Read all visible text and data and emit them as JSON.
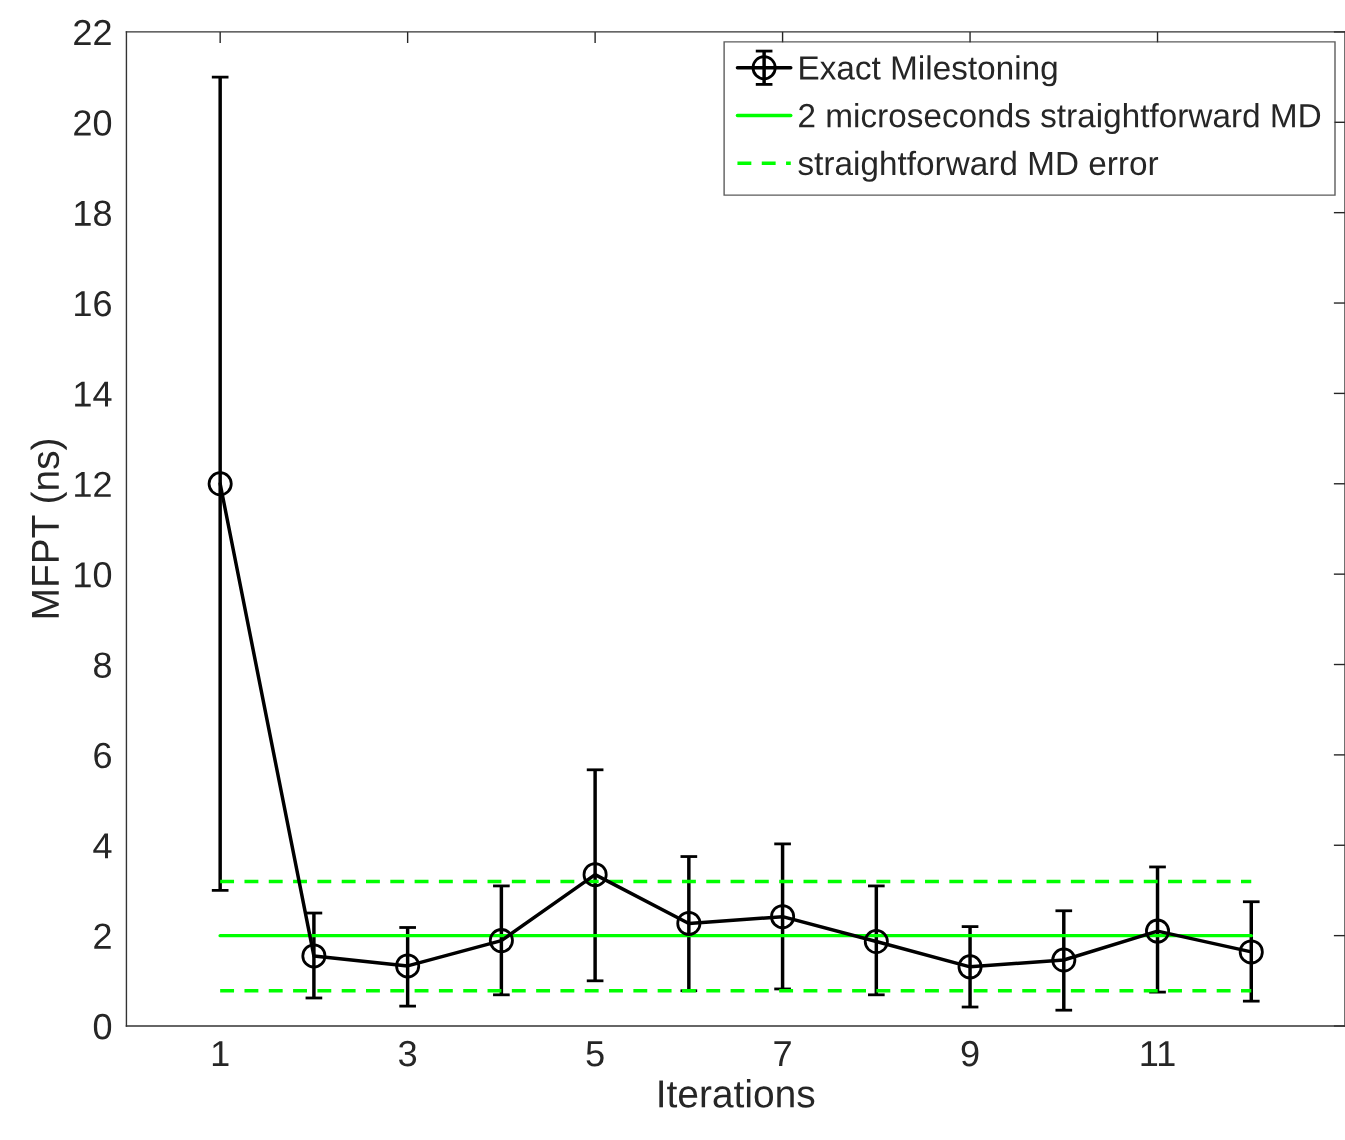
{
  "chart_data": {
    "type": "line",
    "xlabel": "Iterations",
    "ylabel": "MFPT (ns)",
    "xlim": [
      0,
      13
    ],
    "xticks": [
      1,
      3,
      5,
      7,
      9,
      11
    ],
    "ylim": [
      0,
      22
    ],
    "yticks": [
      0,
      2,
      4,
      6,
      8,
      10,
      12,
      14,
      16,
      18,
      20,
      22
    ],
    "grid": false,
    "legend": "top right",
    "series": [
      {
        "name": "Exact Milestoning",
        "color": "#000000",
        "marker": "circle",
        "line_style": "solid",
        "x": [
          1,
          2,
          3,
          4,
          5,
          6,
          7,
          8,
          9,
          10,
          11,
          12
        ],
        "values": [
          12,
          1.55,
          1.33,
          1.89,
          3.35,
          2.27,
          2.42,
          1.87,
          1.31,
          1.46,
          2.1,
          1.64
        ],
        "errors": [
          [
            3,
            21
          ],
          [
            0.62,
            2.5
          ],
          [
            0.44,
            2.18
          ],
          [
            0.69,
            3.1
          ],
          [
            1.0,
            5.67
          ],
          [
            0.78,
            3.75
          ],
          [
            0.82,
            4.03
          ],
          [
            0.69,
            3.1
          ],
          [
            0.42,
            2.2
          ],
          [
            0.35,
            2.55
          ],
          [
            0.75,
            3.52
          ],
          [
            0.55,
            2.75
          ]
        ]
      },
      {
        "name": "2 microseconds straightforward MD",
        "color": "#00ff00",
        "marker": "none",
        "line_style": "solid",
        "x": [
          1,
          12
        ],
        "values": [
          2.0,
          2.0
        ]
      },
      {
        "name": "straightforward MD error",
        "color": "#00ff00",
        "marker": "none",
        "line_style": "dashed",
        "x": [
          1,
          12
        ],
        "values": [
          3.2,
          3.2
        ]
      },
      {
        "color": "#00ff00",
        "marker": "none",
        "line_style": "dashed",
        "x": [
          1,
          12
        ],
        "values": [
          0.78,
          0.78
        ]
      }
    ]
  }
}
